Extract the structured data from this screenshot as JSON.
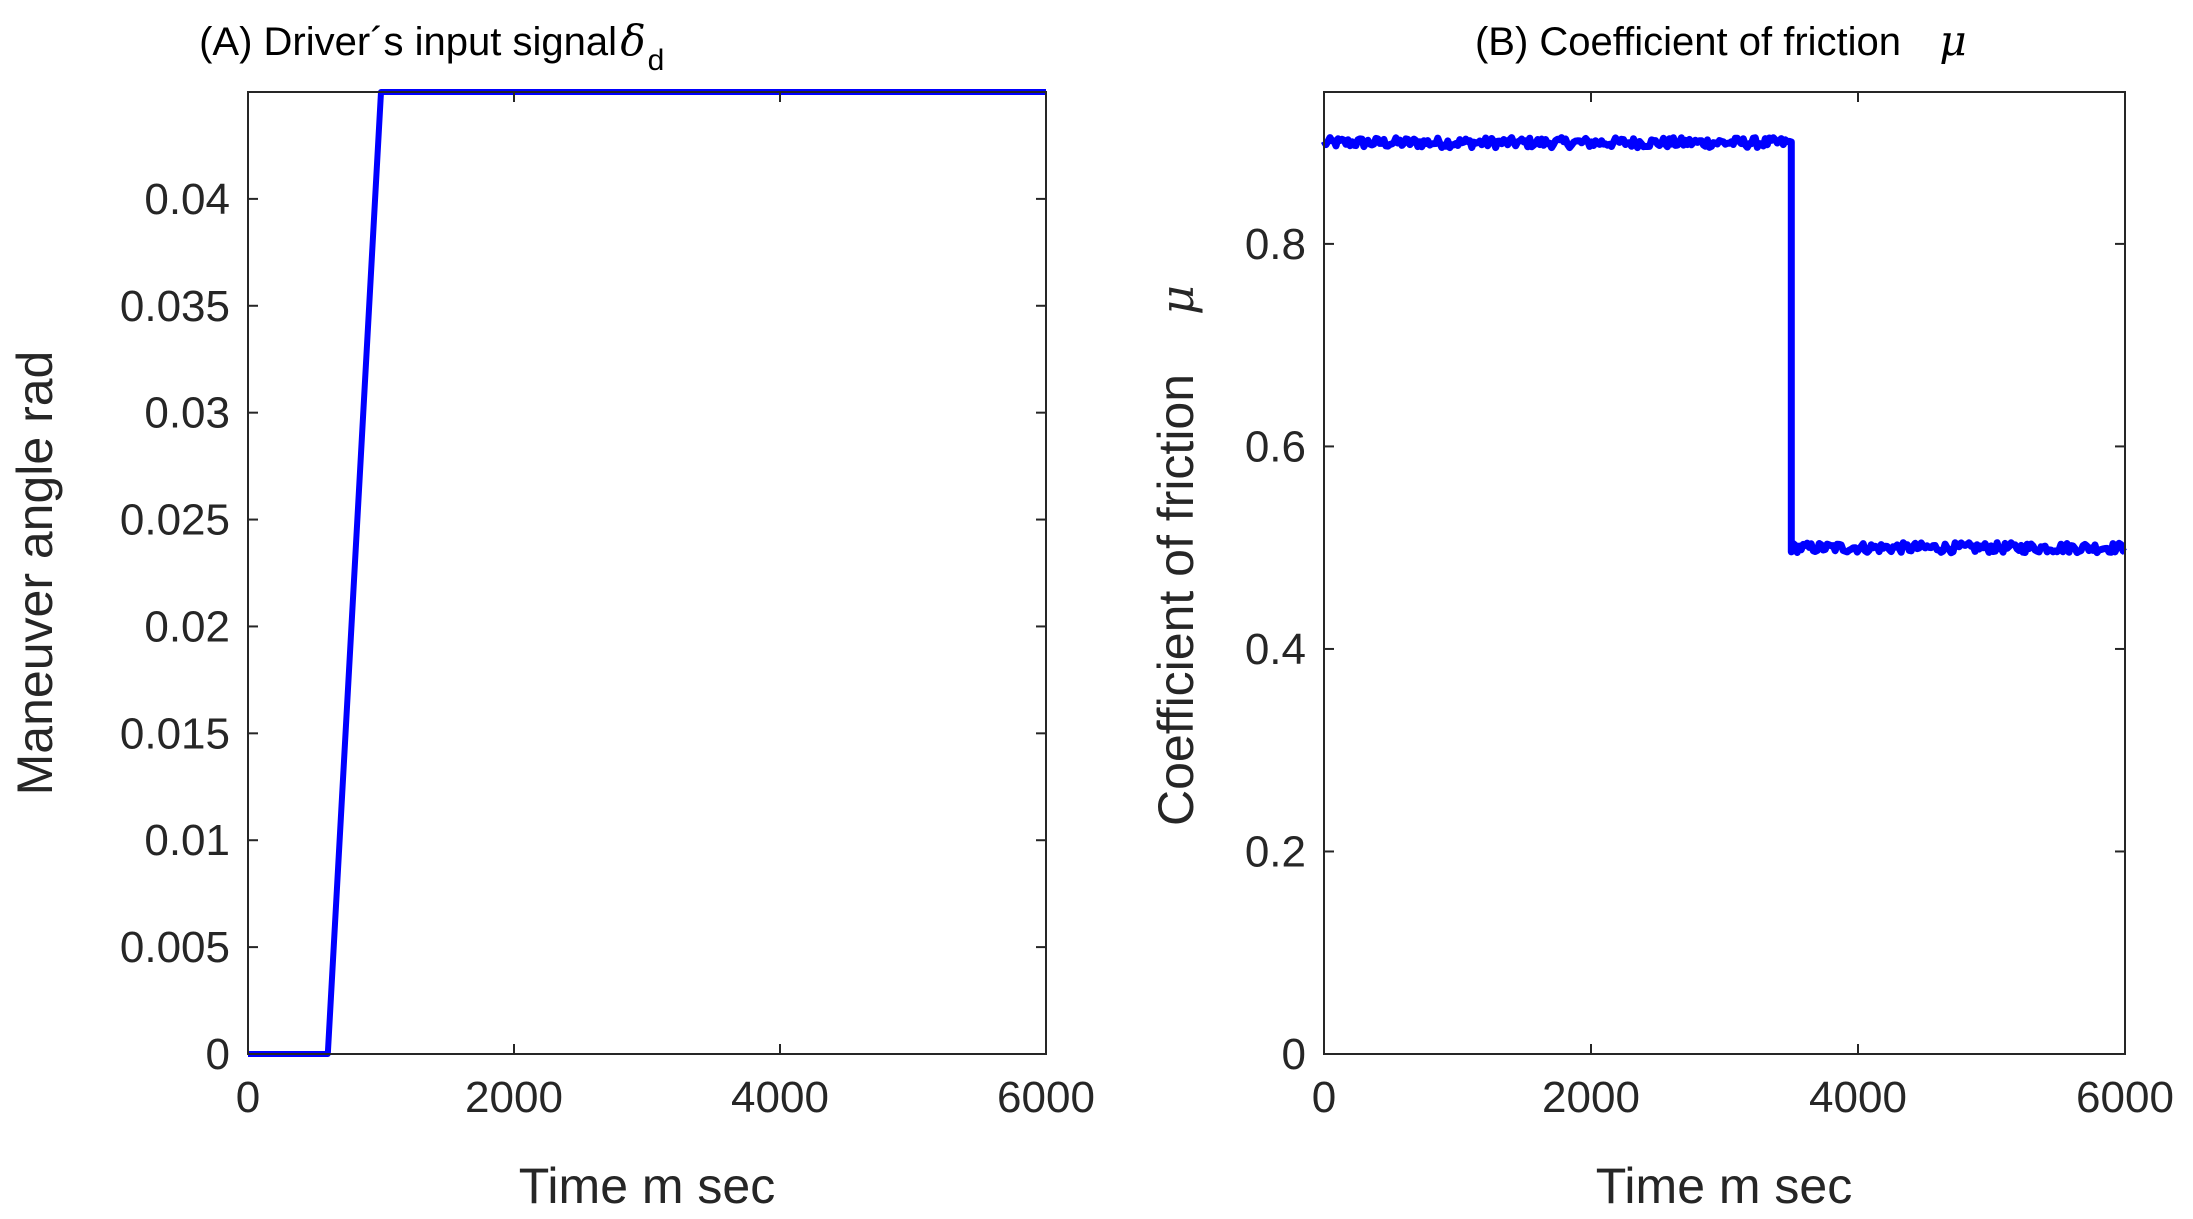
{
  "chart_data": [
    {
      "type": "line",
      "title": "(A) Driver´s input signal",
      "title_symbol": "δ",
      "title_subscript": "d",
      "xlabel": "Time m sec",
      "ylabel": "Maneuver angle rad",
      "xlim": [
        0,
        6000
      ],
      "ylim": [
        0,
        0.045
      ],
      "xticks": [
        0,
        2000,
        4000,
        6000
      ],
      "xtick_labels": [
        "0",
        "2000",
        "4000",
        "6000"
      ],
      "yticks": [
        0,
        0.005,
        0.01,
        0.015,
        0.02,
        0.025,
        0.03,
        0.035,
        0.04
      ],
      "ytick_labels": [
        "0",
        "0.005",
        "0.01",
        "0.015",
        "0.02",
        "0.025",
        "0.03",
        "0.035",
        "0.04"
      ],
      "grid": false,
      "series_color": "#0000ff",
      "series": [
        {
          "x": [
            0,
            600,
            1000,
            6000
          ],
          "values": [
            0,
            0,
            0.045,
            0.045
          ]
        }
      ]
    },
    {
      "type": "line",
      "title": "(B) Coefficient of friction",
      "title_symbol": "μ",
      "xlabel": "Time m sec",
      "ylabel": "Coefficient of friction",
      "ylabel_symbol": "μ",
      "xlim": [
        0,
        6000
      ],
      "ylim": [
        0,
        0.95
      ],
      "xticks": [
        0,
        2000,
        4000,
        6000
      ],
      "xtick_labels": [
        "0",
        "2000",
        "4000",
        "6000"
      ],
      "yticks": [
        0,
        0.2,
        0.4,
        0.6,
        0.8
      ],
      "ytick_labels": [
        "0",
        "0.2",
        "0.4",
        "0.6",
        "0.8"
      ],
      "grid": false,
      "series_color": "#0000ff",
      "noise_amplitude": 0.005,
      "series": [
        {
          "x": [
            0,
            3500,
            3500,
            6000
          ],
          "values": [
            0.9,
            0.9,
            0.5,
            0.5
          ]
        }
      ]
    }
  ]
}
